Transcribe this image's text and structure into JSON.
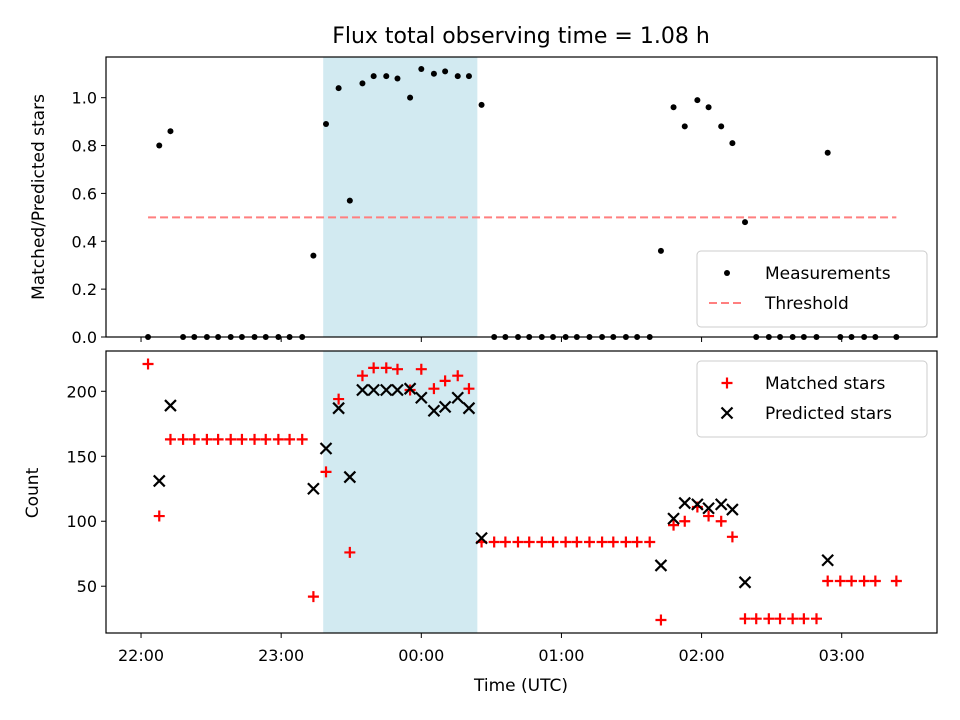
{
  "title": "Flux total observing time = 1.08 h",
  "colors": {
    "measurement": "#000000",
    "threshold": "#ff7f7f",
    "matched": "#ff0000",
    "predicted": "#000000",
    "window": "#add8e6"
  },
  "chart_data": [
    {
      "type": "scatter",
      "ylabel": "Matched/Predicted stars",
      "ylim": [
        0,
        1.17
      ],
      "yticks": [
        0.0,
        0.2,
        0.4,
        0.6,
        0.8,
        1.0
      ],
      "ytick_labels": [
        "0.0",
        "0.2",
        "0.4",
        "0.6",
        "0.8",
        "1.0"
      ],
      "xlim": [
        21.75,
        27.68
      ],
      "shaded_window": [
        23.3,
        24.4
      ],
      "legend_position": "lower-right",
      "series": [
        {
          "name": "Measurements",
          "marker": "dot",
          "x": [
            22.05,
            22.13,
            22.21,
            22.3,
            22.38,
            22.47,
            22.55,
            22.64,
            22.72,
            22.81,
            22.89,
            22.98,
            23.06,
            23.15,
            23.23,
            23.32,
            23.41,
            23.49,
            23.58,
            23.66,
            23.75,
            23.83,
            23.92,
            24.0,
            24.09,
            24.17,
            24.26,
            24.34,
            24.43,
            24.52,
            24.6,
            24.69,
            24.77,
            24.86,
            24.94,
            25.03,
            25.11,
            25.2,
            25.29,
            25.37,
            25.46,
            25.54,
            25.63,
            25.71,
            25.8,
            25.88,
            25.97,
            26.05,
            26.14,
            26.22,
            26.31,
            26.39,
            26.48,
            26.56,
            26.65,
            26.73,
            26.82,
            26.9,
            26.99,
            27.07,
            27.16,
            27.24,
            27.39
          ],
          "y": [
            0.0,
            0.8,
            0.86,
            0.0,
            0.0,
            0.0,
            0.0,
            0.0,
            0.0,
            0.0,
            0.0,
            0.0,
            0.0,
            0.0,
            0.34,
            0.89,
            1.04,
            0.57,
            1.06,
            1.09,
            1.09,
            1.08,
            1.0,
            1.12,
            1.1,
            1.11,
            1.09,
            1.09,
            0.97,
            0.0,
            0.0,
            0.0,
            0.0,
            0.0,
            0.0,
            0.0,
            0.0,
            0.0,
            0.0,
            0.0,
            0.0,
            0.0,
            0.0,
            0.36,
            0.96,
            0.88,
            0.99,
            0.96,
            0.88,
            0.81,
            0.48,
            0.0,
            0.0,
            0.0,
            0.0,
            0.0,
            0.0,
            0.77,
            0.0,
            0.0,
            0.0,
            0.0,
            0.0
          ]
        },
        {
          "name": "Threshold",
          "style": "dashed",
          "x": [
            22.05,
            27.39
          ],
          "y": [
            0.5,
            0.5
          ]
        }
      ]
    },
    {
      "type": "scatter",
      "ylabel": "Count",
      "xlabel": "Time (UTC)",
      "ylim": [
        14,
        231
      ],
      "yticks": [
        50,
        100,
        150,
        200
      ],
      "ytick_labels": [
        "50",
        "100",
        "150",
        "200"
      ],
      "xlim": [
        21.75,
        27.68
      ],
      "xticks": [
        22,
        23,
        24,
        25,
        26,
        27
      ],
      "xtick_labels": [
        "22:00",
        "23:00",
        "00:00",
        "01:00",
        "02:00",
        "03:00"
      ],
      "shaded_window": [
        23.3,
        24.4
      ],
      "legend_position": "top-right",
      "series": [
        {
          "name": "Matched stars",
          "marker": "plus",
          "x": [
            22.05,
            22.13,
            22.21,
            22.3,
            22.38,
            22.47,
            22.55,
            22.64,
            22.72,
            22.81,
            22.89,
            22.98,
            23.06,
            23.15,
            23.23,
            23.32,
            23.41,
            23.49,
            23.58,
            23.66,
            23.75,
            23.83,
            23.92,
            24.0,
            24.09,
            24.17,
            24.26,
            24.34,
            24.43,
            24.52,
            24.6,
            24.69,
            24.77,
            24.86,
            24.94,
            25.03,
            25.11,
            25.2,
            25.29,
            25.37,
            25.46,
            25.54,
            25.63,
            25.71,
            25.8,
            25.88,
            25.97,
            26.05,
            26.14,
            26.22,
            26.31,
            26.39,
            26.48,
            26.56,
            26.65,
            26.73,
            26.82,
            26.9,
            26.99,
            27.07,
            27.16,
            27.24,
            27.39
          ],
          "y": [
            221,
            104,
            163,
            163,
            163,
            163,
            163,
            163,
            163,
            163,
            163,
            163,
            163,
            163,
            42,
            138,
            194,
            76,
            212,
            218,
            218,
            217,
            201,
            217,
            202,
            208,
            212,
            202,
            84,
            84,
            84,
            84,
            84,
            84,
            84,
            84,
            84,
            84,
            84,
            84,
            84,
            84,
            84,
            24,
            97,
            100,
            111,
            104,
            100,
            88,
            25,
            25,
            25,
            25,
            25,
            25,
            25,
            54,
            54,
            54,
            54,
            54,
            54
          ]
        },
        {
          "name": "Predicted stars",
          "marker": "x",
          "x": [
            22.13,
            22.21,
            23.23,
            23.32,
            23.41,
            23.49,
            23.58,
            23.66,
            23.75,
            23.83,
            23.92,
            24.0,
            24.09,
            24.17,
            24.26,
            24.34,
            24.43,
            25.71,
            25.8,
            25.88,
            25.97,
            26.05,
            26.14,
            26.22,
            26.31,
            26.9
          ],
          "y": [
            131,
            189,
            125,
            156,
            187,
            134,
            201,
            201,
            201,
            201,
            202,
            195,
            185,
            188,
            195,
            187,
            87,
            66,
            102,
            114,
            113,
            110,
            113,
            109,
            53,
            70
          ]
        }
      ]
    }
  ]
}
